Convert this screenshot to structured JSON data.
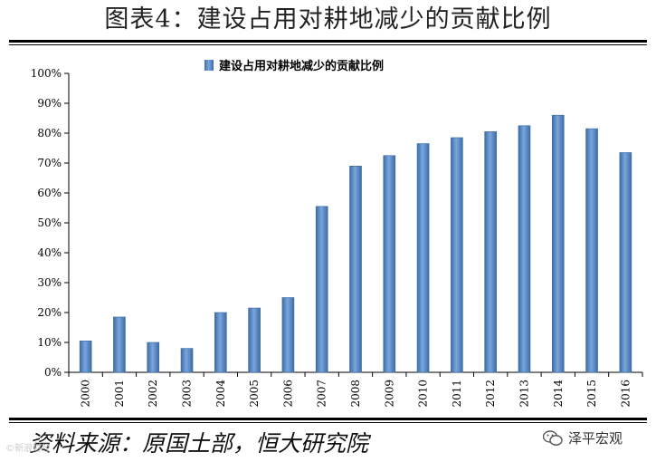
{
  "header": {
    "title": "图表4：建设占用对耕地减少的贡献比例"
  },
  "footer": {
    "source": "资料来源：原国土部，恒大研究院",
    "watermark": "泽平宏观",
    "corner_mark": "©新浪财经"
  },
  "colors": {
    "bar": "#5b8bc6",
    "bar_dark": "#3d6ca8"
  },
  "chart_data": {
    "type": "bar",
    "categories": [
      "2000",
      "2001",
      "2002",
      "2003",
      "2004",
      "2005",
      "2006",
      "2007",
      "2008",
      "2009",
      "2010",
      "2011",
      "2012",
      "2013",
      "2014",
      "2015",
      "2016"
    ],
    "series": [
      {
        "name": "建设占用对耕地减少的贡献比例",
        "values": [
          10.5,
          18.5,
          10,
          8,
          20,
          21.5,
          25,
          55.5,
          69,
          72.5,
          76.5,
          78.5,
          80.5,
          82.5,
          86,
          81.5,
          73.5
        ]
      }
    ],
    "yticks": [
      "0%",
      "10%",
      "20%",
      "30%",
      "40%",
      "50%",
      "60%",
      "70%",
      "80%",
      "90%",
      "100%"
    ],
    "ylim": [
      0,
      100
    ],
    "legend": "top-center",
    "grid": false
  }
}
